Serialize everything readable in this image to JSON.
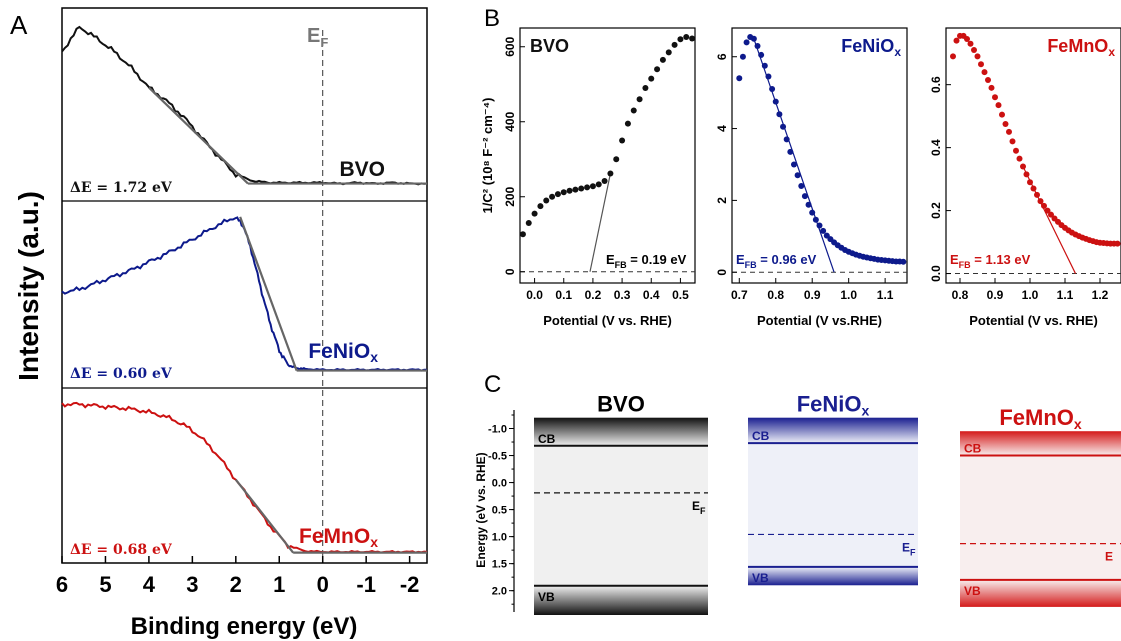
{
  "panel_labels": {
    "a": "A",
    "b": "B",
    "c": "C"
  },
  "colors": {
    "bvo": "#111111",
    "feniox": "#0d1a8c",
    "femnox": "#cc1111",
    "fit": "#666666",
    "ef": "#777777"
  },
  "chart_data": [
    {
      "id": "A",
      "type": "line",
      "xlabel": "Binding energy (eV)",
      "ylabel": "Intensity (a.u.)",
      "xlim": [
        6,
        -2.4
      ],
      "xticks": [
        "6",
        "5",
        "4",
        "3",
        "2",
        "1",
        "0",
        "-1",
        "-2"
      ],
      "ef_label": "E",
      "ef_sub": "F",
      "series": [
        {
          "name": "BVO",
          "delta_label": "ΔE = 1.72 eV",
          "fit_onset": 1.72,
          "x": [
            6.0,
            5.6,
            5.2,
            4.8,
            4.4,
            4.0,
            3.6,
            3.2,
            2.8,
            2.4,
            2.0,
            1.6,
            1.2,
            0.8,
            0.4,
            0.0,
            -0.4,
            -0.8,
            -1.2,
            -1.6,
            -2.0,
            -2.4
          ],
          "y": [
            0.82,
            0.97,
            0.9,
            0.82,
            0.72,
            0.6,
            0.52,
            0.42,
            0.3,
            0.18,
            0.07,
            0.03,
            0.02,
            0.02,
            0.02,
            0.02,
            0.015,
            0.02,
            0.015,
            0.02,
            0.015,
            0.015
          ]
        },
        {
          "name": "FeNiO",
          "name_sub": "x",
          "delta_label": "ΔE = 0.60 eV",
          "fit_onset": 0.6,
          "x": [
            6.0,
            5.6,
            5.2,
            4.8,
            4.4,
            4.0,
            3.6,
            3.2,
            2.8,
            2.4,
            2.0,
            1.8,
            1.6,
            1.4,
            1.2,
            1.0,
            0.8,
            0.6,
            0.4,
            0.0,
            -0.4,
            -0.8,
            -1.2,
            -1.6,
            -2.0,
            -2.4
          ],
          "y": [
            0.5,
            0.52,
            0.56,
            0.6,
            0.64,
            0.69,
            0.74,
            0.8,
            0.86,
            0.92,
            0.97,
            0.9,
            0.72,
            0.5,
            0.3,
            0.14,
            0.05,
            0.03,
            0.025,
            0.02,
            0.02,
            0.02,
            0.02,
            0.02,
            0.02,
            0.02
          ]
        },
        {
          "name": "FeMnO",
          "name_sub": "x",
          "delta_label": "ΔE = 0.68 eV",
          "fit_onset": 0.68,
          "x": [
            6.0,
            5.6,
            5.2,
            4.8,
            4.4,
            4.0,
            3.6,
            3.2,
            2.8,
            2.4,
            2.0,
            1.6,
            1.2,
            0.8,
            0.4,
            0.0,
            -0.4,
            -0.8,
            -1.2,
            -1.6,
            -2.0,
            -2.4
          ],
          "y": [
            0.96,
            0.96,
            0.95,
            0.94,
            0.93,
            0.91,
            0.88,
            0.83,
            0.75,
            0.63,
            0.48,
            0.33,
            0.18,
            0.06,
            0.025,
            0.02,
            0.02,
            0.02,
            0.02,
            0.02,
            0.02,
            0.02
          ]
        }
      ]
    },
    {
      "id": "B1",
      "type": "scatter",
      "name": "BVO",
      "xlabel": "Potential (V vs. RHE)",
      "ylabel": "1/C² (10⁸ F⁻² cm⁻⁴)",
      "xlim": [
        -0.05,
        0.55
      ],
      "ylim": [
        -30,
        650
      ],
      "xticks": [
        0.0,
        0.1,
        0.2,
        0.3,
        0.4,
        0.5
      ],
      "yticks": [
        0,
        200,
        400,
        600
      ],
      "efb_label": "E",
      "efb_sub": "FB",
      "efb_value": " = 0.19 eV",
      "efb": 0.19,
      "x": [
        -0.04,
        -0.02,
        0.0,
        0.02,
        0.04,
        0.06,
        0.08,
        0.1,
        0.12,
        0.14,
        0.16,
        0.18,
        0.2,
        0.22,
        0.24,
        0.26,
        0.28,
        0.3,
        0.32,
        0.34,
        0.36,
        0.38,
        0.4,
        0.42,
        0.44,
        0.46,
        0.48,
        0.5,
        0.52,
        0.54
      ],
      "y": [
        100,
        130,
        155,
        175,
        190,
        200,
        207,
        212,
        216,
        219,
        222,
        225,
        228,
        233,
        242,
        262,
        300,
        350,
        395,
        430,
        460,
        490,
        515,
        540,
        565,
        585,
        605,
        620,
        626,
        622
      ]
    },
    {
      "id": "B2",
      "type": "scatter",
      "name": "FeNiO",
      "name_sub": "x",
      "xlabel": "Potential (V vs.RHE)",
      "xlim": [
        0.68,
        1.16
      ],
      "ylim": [
        -0.3,
        6.8
      ],
      "xticks": [
        0.7,
        0.8,
        0.9,
        1.0,
        1.1
      ],
      "yticks": [
        0,
        2,
        4,
        6
      ],
      "efb_label": "E",
      "efb_sub": "FB",
      "efb_value": " = 0.96 eV",
      "efb": 0.96,
      "x": [
        0.7,
        0.71,
        0.72,
        0.73,
        0.74,
        0.75,
        0.76,
        0.77,
        0.78,
        0.79,
        0.8,
        0.81,
        0.82,
        0.83,
        0.84,
        0.85,
        0.86,
        0.87,
        0.88,
        0.89,
        0.9,
        0.91,
        0.92,
        0.93,
        0.94,
        0.95,
        0.96,
        0.97,
        0.98,
        0.99,
        1.0,
        1.01,
        1.02,
        1.03,
        1.04,
        1.05,
        1.06,
        1.07,
        1.08,
        1.09,
        1.1,
        1.11,
        1.12,
        1.13,
        1.14,
        1.15
      ],
      "y": [
        5.4,
        6.0,
        6.4,
        6.55,
        6.5,
        6.3,
        6.05,
        5.75,
        5.45,
        5.1,
        4.75,
        4.4,
        4.05,
        3.7,
        3.35,
        3.0,
        2.7,
        2.4,
        2.12,
        1.88,
        1.66,
        1.46,
        1.3,
        1.15,
        1.02,
        0.92,
        0.83,
        0.75,
        0.68,
        0.62,
        0.57,
        0.53,
        0.49,
        0.46,
        0.43,
        0.41,
        0.39,
        0.37,
        0.35,
        0.34,
        0.33,
        0.32,
        0.31,
        0.3,
        0.3,
        0.29
      ]
    },
    {
      "id": "B3",
      "type": "scatter",
      "name": "FeMnO",
      "name_sub": "x",
      "xlabel": "Potential (V vs. RHE)",
      "xlim": [
        0.76,
        1.26
      ],
      "ylim": [
        -0.03,
        0.78
      ],
      "xticks": [
        0.8,
        0.9,
        1.0,
        1.1,
        1.2
      ],
      "yticks": [
        0.0,
        0.2,
        0.4,
        0.6
      ],
      "efb_label": "E",
      "efb_sub": "FB",
      "efb_value": " = 1.13 eV",
      "efb": 1.13,
      "x": [
        0.78,
        0.79,
        0.8,
        0.81,
        0.82,
        0.83,
        0.84,
        0.85,
        0.86,
        0.87,
        0.88,
        0.89,
        0.9,
        0.91,
        0.92,
        0.93,
        0.94,
        0.95,
        0.96,
        0.97,
        0.98,
        0.99,
        1.0,
        1.01,
        1.02,
        1.03,
        1.04,
        1.05,
        1.06,
        1.07,
        1.08,
        1.09,
        1.1,
        1.11,
        1.12,
        1.13,
        1.14,
        1.15,
        1.16,
        1.17,
        1.18,
        1.19,
        1.2,
        1.21,
        1.22,
        1.23,
        1.24,
        1.25
      ],
      "y": [
        0.69,
        0.74,
        0.755,
        0.755,
        0.745,
        0.73,
        0.71,
        0.69,
        0.665,
        0.64,
        0.615,
        0.59,
        0.56,
        0.535,
        0.505,
        0.475,
        0.45,
        0.42,
        0.39,
        0.365,
        0.34,
        0.315,
        0.29,
        0.27,
        0.25,
        0.23,
        0.215,
        0.2,
        0.187,
        0.175,
        0.164,
        0.154,
        0.145,
        0.137,
        0.13,
        0.124,
        0.119,
        0.114,
        0.11,
        0.106,
        0.103,
        0.1,
        0.098,
        0.097,
        0.096,
        0.095,
        0.095,
        0.095
      ]
    },
    {
      "id": "C",
      "type": "diagram",
      "ylabel": "Energy (eV vs. RHE)",
      "ylim": [
        -1.25,
        2.45
      ],
      "yticks": [
        "-1.0",
        "-0.5",
        "0.0",
        "0.5",
        "1.0",
        "1.5",
        "2.0"
      ],
      "materials": [
        {
          "name": "BVO",
          "cb": -0.68,
          "ef": 0.19,
          "vb": 1.91,
          "band_top": -1.2,
          "band_bottom": 2.45,
          "cb_label": "CB",
          "vb_label": "VB",
          "ef_label": "E",
          "ef_sub": "F"
        },
        {
          "name": "FeNiO",
          "name_sub": "x",
          "cb": -0.73,
          "ef": 0.96,
          "vb": 1.56,
          "band_top": -1.2,
          "band_bottom": 1.9,
          "cb_label": "CB",
          "vb_label": "VB",
          "ef_label": "E",
          "ef_sub": "F"
        },
        {
          "name": "FeMnO",
          "name_sub": "x",
          "cb": -0.5,
          "ef": 1.13,
          "vb": 1.8,
          "band_top": -0.95,
          "band_bottom": 2.3,
          "cb_label": "CB",
          "vb_label": "VB",
          "ef_label": "E",
          "ef_sub": ""
        }
      ]
    }
  ]
}
